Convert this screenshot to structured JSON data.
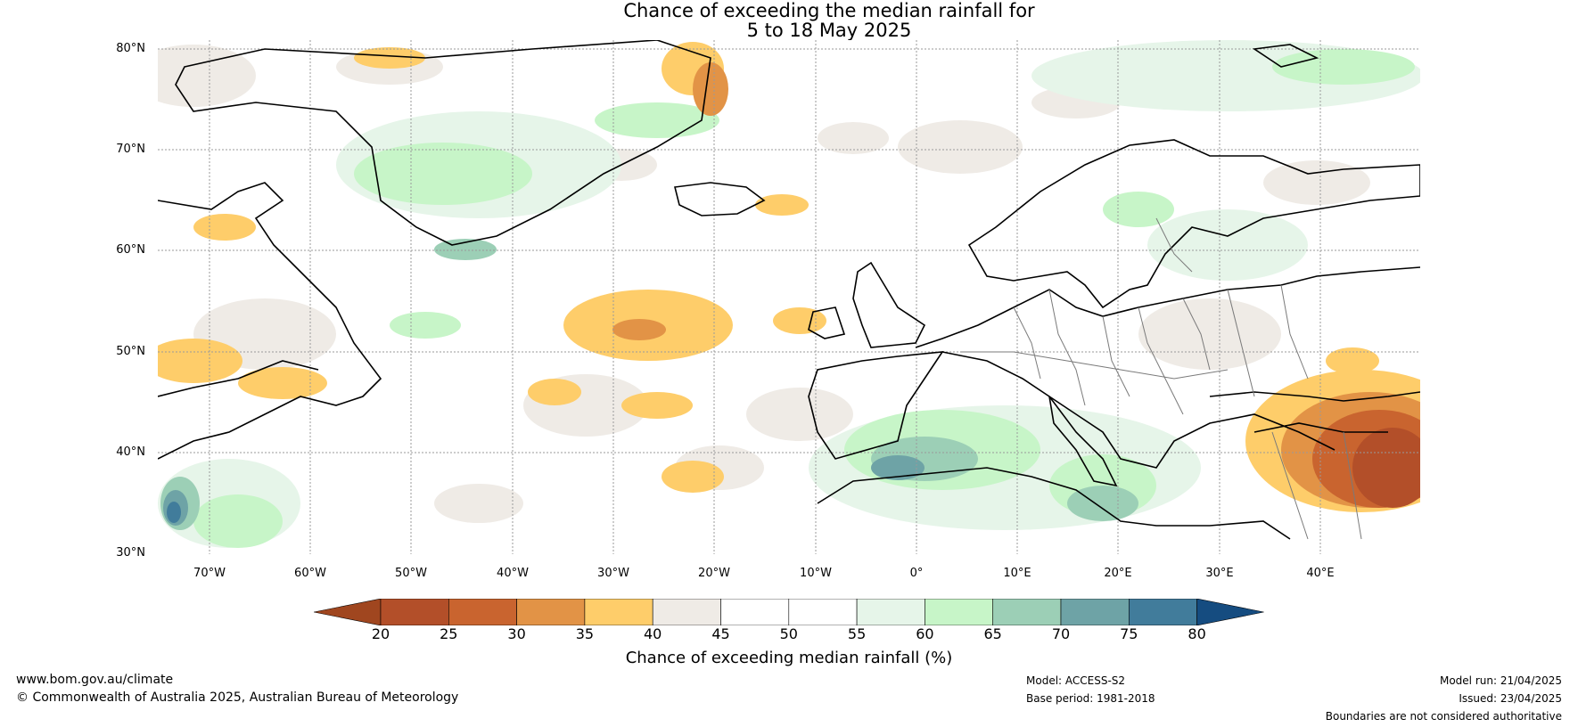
{
  "title_line1": "Chance of exceeding the median rainfall for",
  "title_line2": "5 to 18 May 2025",
  "lat_labels": [
    "80°N",
    "70°N",
    "60°N",
    "50°N",
    "40°N",
    "30°N"
  ],
  "lon_labels": [
    "70°W",
    "60°W",
    "50°W",
    "40°W",
    "30°W",
    "20°W",
    "10°W",
    "0°",
    "10°E",
    "20°E",
    "30°E",
    "40°E"
  ],
  "colorbar": {
    "ticks": [
      "20",
      "25",
      "30",
      "35",
      "40",
      "45",
      "50",
      "55",
      "60",
      "65",
      "70",
      "75",
      "80"
    ],
    "colors": [
      "#a0461f",
      "#b34f29",
      "#c9642f",
      "#e29346",
      "#fecd6a",
      "#efebe6",
      "#ffffff",
      "#ffffff",
      "#e6f5e9",
      "#c7f5c8",
      "#9ccfb6",
      "#6ea3a6",
      "#417c9b",
      "#154c80"
    ],
    "label": "Chance of exceeding median rainfall (%)"
  },
  "footer": {
    "url": "www.bom.gov.au/climate",
    "copyright": "© Commonwealth of Australia 2025, Australian Bureau of Meteorology",
    "model": "Model: ACCESS-S2",
    "base_period": "Base period: 1981-2018",
    "model_run": "Model run: 21/04/2025",
    "issued": "Issued: 23/04/2025",
    "disclaimer": "Boundaries are not considered authoritative"
  }
}
